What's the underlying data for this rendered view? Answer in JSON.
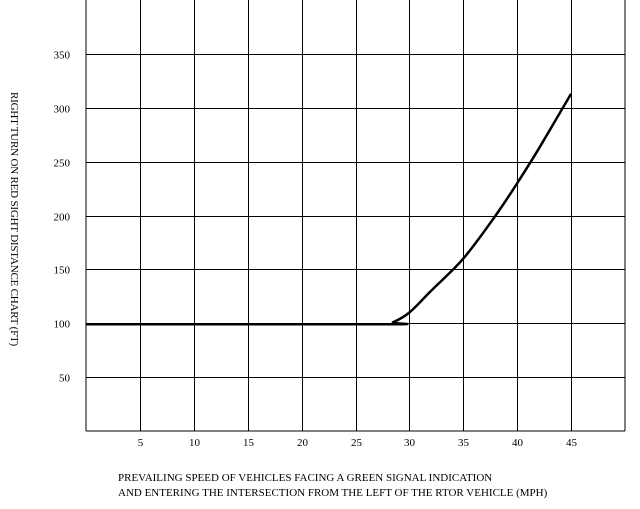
{
  "chart_data": {
    "type": "line",
    "title": "",
    "ylabel": "RIGHT TURN ON RED SIGHT DISTANCE CHART (FT)",
    "xlabel_lines": [
      "PREVAILING SPEED OF VEHICLES FACING A GREEN SIGNAL INDICATION",
      "AND ENTERING THE INTERSECTION FROM THE LEFT OF THE RTOR VEHICLE (MPH)"
    ],
    "xlim": [
      0,
      50
    ],
    "ylim": [
      0,
      400
    ],
    "xticks": [
      5,
      10,
      15,
      20,
      25,
      30,
      35,
      40,
      45
    ],
    "yticks": [
      50,
      100,
      150,
      200,
      250,
      300,
      350
    ],
    "grid": true,
    "series": [
      {
        "x": [
          0,
          27.5,
          28.5,
          30,
          32,
          35,
          38,
          40,
          42,
          45
        ],
        "y": [
          99,
          99,
          101,
          110,
          130,
          160,
          200,
          230,
          262,
          313
        ],
        "color": "#000000"
      }
    ]
  }
}
